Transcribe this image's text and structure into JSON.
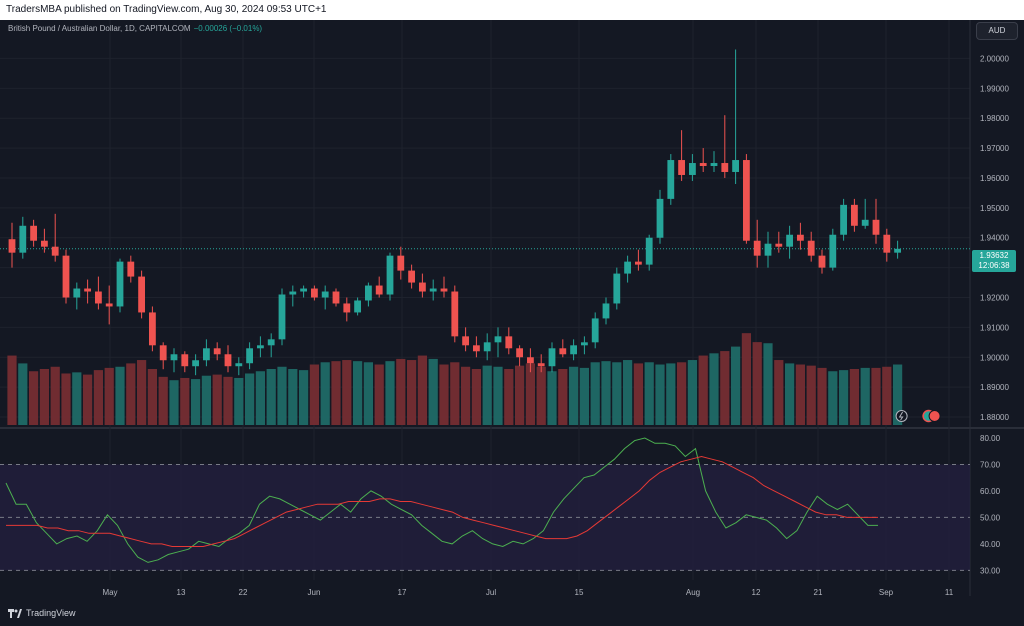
{
  "header": {
    "published_text": "TradersMBA published on TradingView.com, Aug 30, 2024 09:53 UTC+1"
  },
  "legend": {
    "symbol": "British Pound / Australian Dollar, 1D, CAPITALCOM",
    "change": "−0.00026 (−0.01%)"
  },
  "currency_button": "AUD",
  "price_tag": {
    "price": "1.93632",
    "countdown": "12:06:38"
  },
  "brand": "TradingView",
  "colors": {
    "up": "#26a69a",
    "down": "#ef5350",
    "volume_up": "#1f6f6a",
    "volume_down": "#7a2f33",
    "rsi": "#4caf50",
    "rsi_ma": "#e53935",
    "rsi_band": "#221f3d"
  },
  "chart_data": [
    {
      "type": "candlestick",
      "title": "British Pound / Australian Dollar, 1D, CAPITALCOM",
      "y_ticks": [
        "2.00000",
        "1.99000",
        "1.98000",
        "1.97000",
        "1.96000",
        "1.95000",
        "1.94000",
        "1.93000",
        "1.92000",
        "1.91000",
        "1.90000",
        "1.89000",
        "1.88000"
      ],
      "ylim": [
        1.878,
        2.0055
      ],
      "x_ticks": [
        "May",
        "13",
        "22",
        "Jun",
        "17",
        "Jul",
        "15",
        "Aug",
        "12",
        "21",
        "Sep",
        "11"
      ],
      "last_price": 1.93632,
      "candles_ohlc": [
        [
          1.9395,
          1.945,
          1.93,
          1.935
        ],
        [
          1.935,
          1.947,
          1.933,
          1.944
        ],
        [
          1.944,
          1.946,
          1.937,
          1.939
        ],
        [
          1.939,
          1.943,
          1.935,
          1.937
        ],
        [
          1.937,
          1.948,
          1.932,
          1.934
        ],
        [
          1.934,
          1.936,
          1.918,
          1.92
        ],
        [
          1.92,
          1.925,
          1.916,
          1.923
        ],
        [
          1.923,
          1.926,
          1.918,
          1.922
        ],
        [
          1.922,
          1.927,
          1.916,
          1.918
        ],
        [
          1.918,
          1.924,
          1.911,
          1.917
        ],
        [
          1.917,
          1.933,
          1.915,
          1.932
        ],
        [
          1.932,
          1.934,
          1.925,
          1.927
        ],
        [
          1.927,
          1.929,
          1.913,
          1.915
        ],
        [
          1.915,
          1.917,
          1.902,
          1.904
        ],
        [
          1.904,
          1.905,
          1.896,
          1.899
        ],
        [
          1.899,
          1.903,
          1.895,
          1.901
        ],
        [
          1.901,
          1.902,
          1.895,
          1.897
        ],
        [
          1.897,
          1.901,
          1.894,
          1.899
        ],
        [
          1.899,
          1.906,
          1.897,
          1.903
        ],
        [
          1.903,
          1.905,
          1.899,
          1.901
        ],
        [
          1.901,
          1.904,
          1.895,
          1.897
        ],
        [
          1.897,
          1.9,
          1.894,
          1.898
        ],
        [
          1.898,
          1.905,
          1.896,
          1.903
        ],
        [
          1.903,
          1.907,
          1.9,
          1.904
        ],
        [
          1.904,
          1.908,
          1.9,
          1.906
        ],
        [
          1.906,
          1.923,
          1.904,
          1.921
        ],
        [
          1.921,
          1.924,
          1.917,
          1.922
        ],
        [
          1.922,
          1.924,
          1.92,
          1.923
        ],
        [
          1.923,
          1.924,
          1.919,
          1.92
        ],
        [
          1.92,
          1.924,
          1.916,
          1.922
        ],
        [
          1.922,
          1.923,
          1.917,
          1.918
        ],
        [
          1.918,
          1.92,
          1.912,
          1.915
        ],
        [
          1.915,
          1.92,
          1.914,
          1.919
        ],
        [
          1.919,
          1.925,
          1.917,
          1.924
        ],
        [
          1.924,
          1.927,
          1.92,
          1.921
        ],
        [
          1.921,
          1.935,
          1.919,
          1.934
        ],
        [
          1.934,
          1.937,
          1.926,
          1.929
        ],
        [
          1.929,
          1.931,
          1.923,
          1.925
        ],
        [
          1.925,
          1.928,
          1.92,
          1.922
        ],
        [
          1.922,
          1.926,
          1.919,
          1.923
        ],
        [
          1.923,
          1.927,
          1.92,
          1.922
        ],
        [
          1.922,
          1.924,
          1.905,
          1.907
        ],
        [
          1.907,
          1.91,
          1.902,
          1.904
        ],
        [
          1.904,
          1.907,
          1.9,
          1.902
        ],
        [
          1.902,
          1.908,
          1.899,
          1.905
        ],
        [
          1.905,
          1.91,
          1.9,
          1.907
        ],
        [
          1.907,
          1.91,
          1.901,
          1.903
        ],
        [
          1.903,
          1.904,
          1.897,
          1.9
        ],
        [
          1.9,
          1.903,
          1.895,
          1.898
        ],
        [
          1.898,
          1.901,
          1.895,
          1.897
        ],
        [
          1.897,
          1.905,
          1.895,
          1.903
        ],
        [
          1.903,
          1.906,
          1.9,
          1.901
        ],
        [
          1.901,
          1.906,
          1.899,
          1.904
        ],
        [
          1.904,
          1.907,
          1.901,
          1.905
        ],
        [
          1.905,
          1.915,
          1.903,
          1.913
        ],
        [
          1.913,
          1.92,
          1.911,
          1.918
        ],
        [
          1.918,
          1.93,
          1.916,
          1.928
        ],
        [
          1.928,
          1.934,
          1.925,
          1.932
        ],
        [
          1.932,
          1.936,
          1.929,
          1.931
        ],
        [
          1.931,
          1.941,
          1.929,
          1.94
        ],
        [
          1.94,
          1.956,
          1.938,
          1.953
        ],
        [
          1.953,
          1.968,
          1.951,
          1.966
        ],
        [
          1.966,
          1.976,
          1.959,
          1.961
        ],
        [
          1.961,
          1.968,
          1.959,
          1.965
        ],
        [
          1.965,
          1.97,
          1.962,
          1.964
        ],
        [
          1.964,
          1.969,
          1.962,
          1.965
        ],
        [
          1.965,
          1.981,
          1.96,
          1.962
        ],
        [
          1.962,
          2.003,
          1.958,
          1.966
        ],
        [
          1.966,
          1.968,
          1.938,
          1.939
        ],
        [
          1.939,
          1.946,
          1.93,
          1.934
        ],
        [
          1.934,
          1.942,
          1.93,
          1.938
        ],
        [
          1.938,
          1.942,
          1.935,
          1.937
        ],
        [
          1.937,
          1.944,
          1.933,
          1.941
        ],
        [
          1.941,
          1.945,
          1.936,
          1.939
        ],
        [
          1.939,
          1.942,
          1.932,
          1.934
        ],
        [
          1.934,
          1.936,
          1.928,
          1.93
        ],
        [
          1.93,
          1.943,
          1.929,
          1.941
        ],
        [
          1.941,
          1.953,
          1.939,
          1.951
        ],
        [
          1.951,
          1.953,
          1.942,
          1.944
        ],
        [
          1.944,
          1.953,
          1.943,
          1.946
        ],
        [
          1.946,
          1.953,
          1.938,
          1.941
        ],
        [
          1.941,
          1.943,
          1.932,
          1.935
        ],
        [
          1.935,
          1.939,
          1.933,
          1.9363
        ]
      ],
      "volume_relative": [
        0.62,
        0.55,
        0.48,
        0.5,
        0.52,
        0.46,
        0.47,
        0.45,
        0.49,
        0.51,
        0.52,
        0.55,
        0.58,
        0.5,
        0.43,
        0.4,
        0.42,
        0.41,
        0.44,
        0.45,
        0.43,
        0.42,
        0.46,
        0.48,
        0.5,
        0.52,
        0.5,
        0.49,
        0.54,
        0.56,
        0.57,
        0.58,
        0.57,
        0.56,
        0.54,
        0.57,
        0.59,
        0.58,
        0.62,
        0.59,
        0.54,
        0.56,
        0.52,
        0.5,
        0.53,
        0.52,
        0.5,
        0.53,
        0.55,
        0.52,
        0.48,
        0.5,
        0.52,
        0.51,
        0.56,
        0.57,
        0.56,
        0.58,
        0.55,
        0.56,
        0.54,
        0.55,
        0.56,
        0.58,
        0.62,
        0.64,
        0.66,
        0.7,
        0.82,
        0.74,
        0.73,
        0.58,
        0.55,
        0.54,
        0.53,
        0.51,
        0.48,
        0.49,
        0.5,
        0.51,
        0.51,
        0.52,
        0.54
      ],
      "series": [
        {
          "name": "Volume"
        }
      ]
    },
    {
      "type": "line",
      "y_ticks": [
        "80.00",
        "70.00",
        "60.00",
        "50.00",
        "40.00",
        "30.00"
      ],
      "ylim": [
        27.5,
        81.5
      ],
      "band": [
        30,
        70
      ],
      "midline": 50,
      "series": [
        {
          "values": [
            63,
            55,
            55,
            48,
            44,
            40,
            42,
            43,
            41,
            45,
            51,
            47,
            40,
            35,
            33,
            34,
            36,
            37,
            38,
            41,
            40,
            39,
            42,
            44,
            47,
            55,
            58,
            57,
            55,
            53,
            51,
            49,
            52,
            55,
            52,
            57,
            60,
            58,
            55,
            53,
            51,
            47,
            44,
            41,
            40,
            43,
            45,
            42,
            40,
            39,
            41,
            40,
            42,
            45,
            52,
            57,
            61,
            65,
            66,
            69,
            72,
            76,
            79,
            80,
            78,
            78,
            77,
            73,
            76,
            60,
            52,
            46,
            48,
            51,
            50,
            49,
            46,
            42,
            45,
            52,
            58,
            55,
            53,
            55,
            51,
            47,
            47
          ]
        },
        {
          "values": [
            47,
            47,
            47,
            47,
            46,
            46,
            45,
            45,
            44,
            44,
            44,
            43,
            42,
            41,
            40,
            40,
            39,
            39,
            39,
            39,
            40,
            41,
            42,
            44,
            46,
            48,
            50,
            52,
            53,
            54,
            55,
            55,
            55,
            56,
            56,
            56,
            57,
            57,
            56,
            56,
            55,
            54,
            53,
            52,
            50,
            49,
            48,
            47,
            46,
            45,
            44,
            43,
            42,
            42,
            42,
            43,
            45,
            48,
            51,
            54,
            57,
            60,
            64,
            67,
            69,
            71,
            72,
            73,
            72,
            71,
            69,
            67,
            65,
            62,
            60,
            58,
            56,
            54,
            52,
            51,
            51,
            50,
            50,
            50,
            50
          ]
        }
      ]
    }
  ]
}
